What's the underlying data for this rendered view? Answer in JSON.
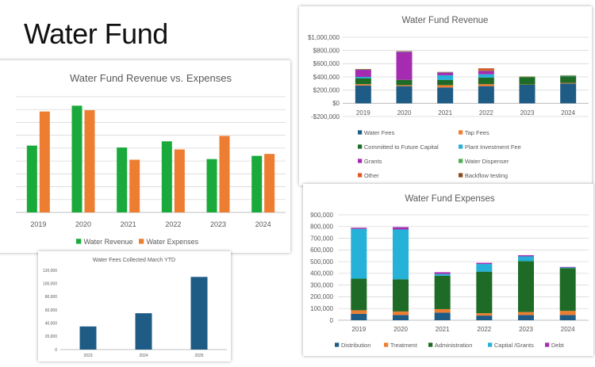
{
  "slide": {
    "title": "Water Fund"
  },
  "chart_data": [
    {
      "id": "rev_vs_exp",
      "type": "bar",
      "title": "Water Fund Revenue vs. Expenses",
      "categories": [
        "2019",
        "2020",
        "2021",
        "2022",
        "2023",
        "2024"
      ],
      "series": [
        {
          "name": "Water Revenue",
          "color": "#1aaa3b",
          "values": [
            520000,
            830000,
            505000,
            553000,
            415000,
            440000
          ]
        },
        {
          "name": "Water Expenses",
          "color": "#ed7d31",
          "values": [
            785000,
            795000,
            410000,
            490000,
            595000,
            455000
          ]
        }
      ],
      "ylim": [
        0,
        900000
      ],
      "yticks": [
        0,
        100000,
        200000,
        300000,
        400000,
        500000,
        600000,
        700000,
        800000,
        900000
      ],
      "grid": true,
      "legend": "bottom"
    },
    {
      "id": "revenue",
      "type": "bar",
      "stacked": true,
      "title": "Water Fund Revenue",
      "categories": [
        "2019",
        "2020",
        "2021",
        "2022",
        "2023",
        "2024"
      ],
      "ylim": [
        -200000,
        1000000
      ],
      "yticks": [
        -200000,
        0,
        200000,
        400000,
        600000,
        800000,
        1000000
      ],
      "ytick_labels": [
        "-$200,000",
        "$0",
        "$200,000",
        "$400,000",
        "$600,000",
        "$800,000",
        "$1,000,000"
      ],
      "grid": true,
      "legend": "bottom",
      "series": [
        {
          "name": "Water Fees",
          "color": "#1f5c85",
          "values": [
            270000,
            260000,
            240000,
            260000,
            280000,
            300000
          ]
        },
        {
          "name": "Tap Fees",
          "color": "#ed7d31",
          "values": [
            20000,
            15000,
            35000,
            30000,
            5000,
            10000
          ]
        },
        {
          "name": "Committed to Future Capital",
          "color": "#1e6b28",
          "values": [
            90000,
            80000,
            80000,
            100000,
            110000,
            100000
          ]
        },
        {
          "name": "Plant Investment Fee",
          "color": "#25b1d8",
          "values": [
            20000,
            0,
            70000,
            50000,
            0,
            5000
          ]
        },
        {
          "name": "Grants",
          "color": "#a52cb0",
          "values": [
            110000,
            425000,
            40000,
            50000,
            0,
            0
          ]
        },
        {
          "name": "Water Dispenser",
          "color": "#4caf50",
          "values": [
            5000,
            5000,
            5000,
            5000,
            5000,
            5000
          ]
        },
        {
          "name": "Other",
          "color": "#e05a28",
          "values": [
            0,
            0,
            0,
            30000,
            0,
            0
          ]
        },
        {
          "name": "Backflow testing",
          "color": "#8a4b1e",
          "values": [
            5000,
            5000,
            5000,
            5000,
            5000,
            5000
          ]
        }
      ]
    },
    {
      "id": "expenses",
      "type": "bar",
      "stacked": true,
      "title": "Water Fund Expenses",
      "categories": [
        "2019",
        "2020",
        "2021",
        "2022",
        "2023",
        "2024"
      ],
      "ylim": [
        0,
        900000
      ],
      "yticks": [
        0,
        100000,
        200000,
        300000,
        400000,
        500000,
        600000,
        700000,
        800000,
        900000
      ],
      "ytick_labels": [
        "0",
        "100,000",
        "200,000",
        "300,000",
        "400,000",
        "500,000",
        "600,000",
        "700,000",
        "800,000",
        "900,000"
      ],
      "grid": true,
      "legend": "bottom",
      "series": [
        {
          "name": "Distribution",
          "color": "#1f5c85",
          "values": [
            55000,
            45000,
            65000,
            40000,
            45000,
            45000
          ]
        },
        {
          "name": "Treatment",
          "color": "#ed7d31",
          "values": [
            30000,
            30000,
            30000,
            20000,
            25000,
            35000
          ]
        },
        {
          "name": "Administration",
          "color": "#1e6b28",
          "values": [
            270000,
            275000,
            285000,
            355000,
            435000,
            365000
          ]
        },
        {
          "name": "Captial /Grants",
          "color": "#25b1d8",
          "values": [
            425000,
            425000,
            15000,
            65000,
            40000,
            5000
          ]
        },
        {
          "name": "Debt",
          "color": "#a52cb0",
          "values": [
            10000,
            20000,
            15000,
            10000,
            10000,
            5000
          ]
        }
      ]
    },
    {
      "id": "fees_ytd",
      "type": "bar",
      "title": "Water Fees Collected March YTD",
      "categories": [
        "2023",
        "2024",
        "2025"
      ],
      "values": [
        35000,
        55000,
        110000
      ],
      "color": "#1f5c85",
      "ylim": [
        0,
        120000
      ],
      "yticks": [
        0,
        20000,
        40000,
        60000,
        80000,
        100000,
        120000
      ],
      "ytick_labels": [
        "0",
        "20,000",
        "40,000",
        "60,000",
        "80,000",
        "100,000",
        "120,000"
      ],
      "grid": false
    }
  ]
}
